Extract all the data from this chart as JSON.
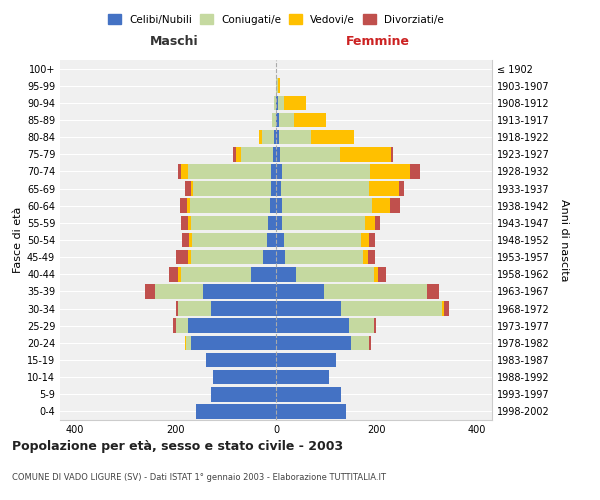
{
  "age_groups": [
    "0-4",
    "5-9",
    "10-14",
    "15-19",
    "20-24",
    "25-29",
    "30-34",
    "35-39",
    "40-44",
    "45-49",
    "50-54",
    "55-59",
    "60-64",
    "65-69",
    "70-74",
    "75-79",
    "80-84",
    "85-89",
    "90-94",
    "95-99",
    "100+"
  ],
  "birth_years": [
    "1998-2002",
    "1993-1997",
    "1988-1992",
    "1983-1987",
    "1978-1982",
    "1973-1977",
    "1968-1972",
    "1963-1967",
    "1958-1962",
    "1953-1957",
    "1948-1952",
    "1943-1947",
    "1938-1942",
    "1933-1937",
    "1928-1932",
    "1923-1927",
    "1918-1922",
    "1913-1917",
    "1908-1912",
    "1903-1907",
    "≤ 1902"
  ],
  "maschi": {
    "celibi": [
      160,
      130,
      125,
      140,
      170,
      175,
      130,
      145,
      50,
      25,
      18,
      15,
      12,
      10,
      10,
      5,
      3,
      0,
      0,
      0,
      0
    ],
    "coniugati": [
      0,
      0,
      0,
      0,
      10,
      25,
      65,
      95,
      140,
      145,
      150,
      155,
      160,
      155,
      165,
      65,
      25,
      8,
      3,
      0,
      0
    ],
    "vedovi": [
      0,
      0,
      0,
      0,
      2,
      0,
      0,
      0,
      5,
      5,
      5,
      5,
      5,
      5,
      15,
      10,
      5,
      0,
      0,
      0,
      0
    ],
    "divorziati": [
      0,
      0,
      0,
      0,
      0,
      5,
      5,
      20,
      18,
      25,
      15,
      15,
      15,
      12,
      5,
      5,
      0,
      0,
      0,
      0,
      0
    ]
  },
  "femmine": {
    "nubili": [
      140,
      130,
      105,
      120,
      150,
      145,
      130,
      95,
      40,
      18,
      15,
      12,
      12,
      10,
      12,
      8,
      5,
      5,
      3,
      0,
      0
    ],
    "coniugate": [
      0,
      0,
      0,
      0,
      35,
      50,
      200,
      205,
      155,
      155,
      155,
      165,
      180,
      175,
      175,
      120,
      65,
      30,
      12,
      3,
      0
    ],
    "vedove": [
      0,
      0,
      0,
      0,
      0,
      0,
      5,
      0,
      8,
      10,
      15,
      20,
      35,
      60,
      80,
      100,
      85,
      65,
      45,
      5,
      0
    ],
    "divorziate": [
      0,
      0,
      0,
      0,
      5,
      5,
      10,
      25,
      15,
      15,
      12,
      10,
      20,
      10,
      20,
      5,
      0,
      0,
      0,
      0,
      0
    ]
  },
  "colors": {
    "celibi_nubili": "#4472c4",
    "coniugati": "#c5d9a0",
    "vedovi": "#ffc000",
    "divorziati": "#c0504d"
  },
  "xlim": 430,
  "title": "Popolazione per età, sesso e stato civile - 2003",
  "subtitle": "COMUNE DI VADO LIGURE (SV) - Dati ISTAT 1° gennaio 2003 - Elaborazione TUTTITALIA.IT",
  "ylabel_left": "Fasce di età",
  "ylabel_right": "Anni di nascita",
  "xlabel_left": "Maschi",
  "xlabel_right": "Femmine",
  "legend_labels": [
    "Celibi/Nubili",
    "Coniugati/e",
    "Vedovi/e",
    "Divorziati/e"
  ],
  "bg_color": "#f0f0f0",
  "bar_height": 0.85
}
